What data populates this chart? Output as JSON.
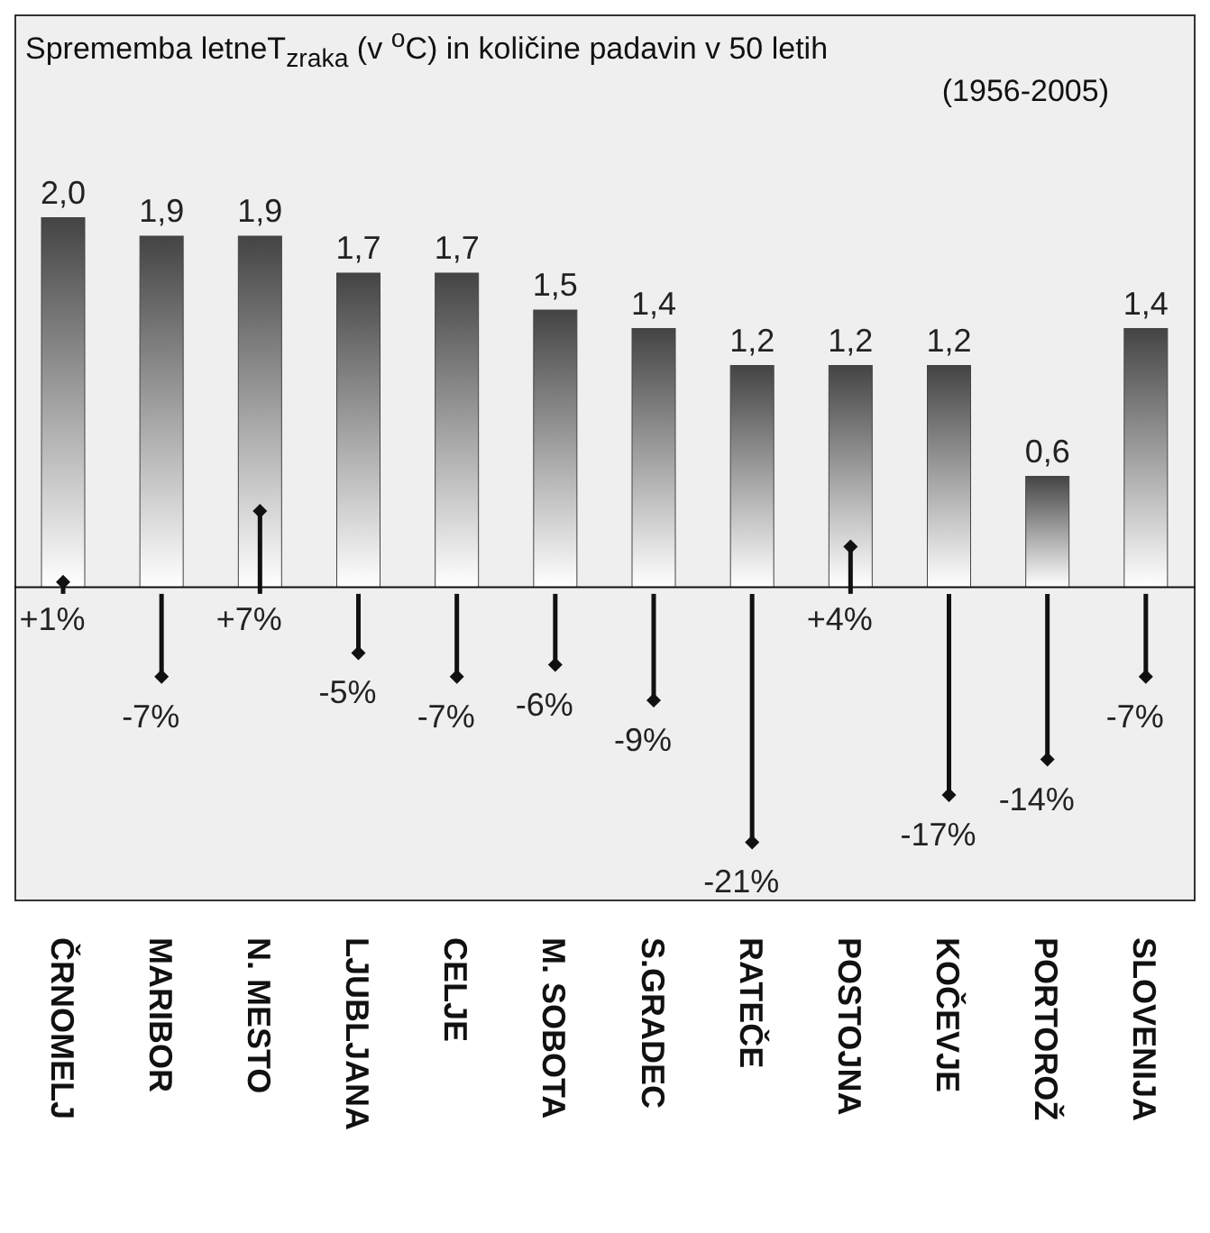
{
  "chart_data": {
    "type": "bar",
    "title": "Sprememba letneT$_{zraka}$ (v $^{o}$C) in količine padavin v 50 letih",
    "subtitle": "(1956-2005)",
    "categories": [
      "ČRNOMELJ",
      "MARIBOR",
      "N. MESTO",
      "LJUBLJANA",
      "CELJE",
      "M. SOBOTA",
      "S.GRADEC",
      "RATEČE",
      "POSTOJNA",
      "KOČEVJE",
      "PORTOROŽ",
      "SLOVENIJA"
    ],
    "series": [
      {
        "color": "#444444",
        "values": [
          2.0,
          1.9,
          1.9,
          1.7,
          1.7,
          1.5,
          1.4,
          1.2,
          1.2,
          1.2,
          0.6,
          1.4
        ],
        "value_labels": [
          "2,0",
          "1,9",
          "1,9",
          "1,7",
          "1,7",
          "1,5",
          "1,4",
          "1,2",
          "1,2",
          "1,2",
          "0,6",
          "1,4"
        ]
      },
      {
        "type": "lollipop",
        "axis": "y2",
        "color": "#111111",
        "marker": "diamond",
        "values": [
          1,
          -7,
          7,
          -5,
          -7,
          -6,
          -9,
          -21,
          4,
          -17,
          -14,
          -7
        ],
        "value_labels": [
          "+1%",
          "-7%",
          "+7%",
          "-5%",
          "-7%",
          "-6%",
          "-9%",
          "-21%",
          "+4%",
          "-17%",
          "-14%",
          "-7%"
        ]
      }
    ],
    "ylim": [
      -1.7,
      3.1
    ],
    "y2lim": [
      -26,
      49
    ],
    "tick_labels": "x"
  }
}
